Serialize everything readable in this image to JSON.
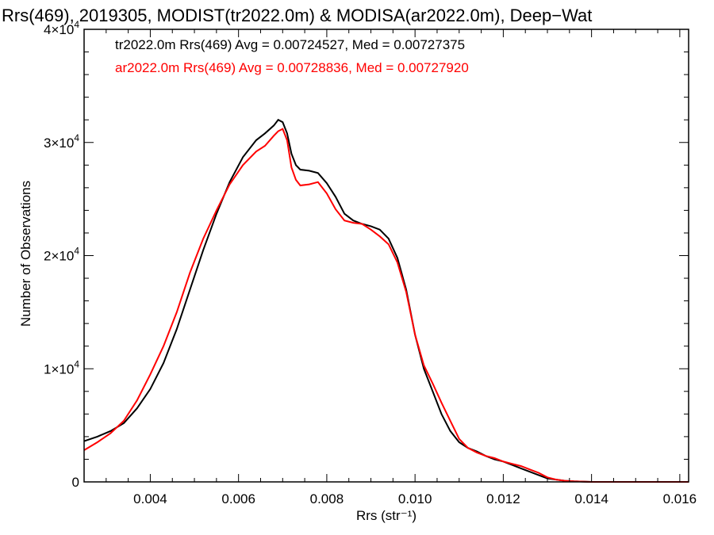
{
  "chart_data": {
    "type": "line",
    "title": "Rrs(469), 2019305, MODIST(tr2022.0m) & MODISA(ar2022.0m), Deep−Wat",
    "xlabel": "Rrs (str⁻¹)",
    "ylabel": "Number of Observations",
    "xlim": [
      0.0025,
      0.0162
    ],
    "ylim": [
      0,
      40000
    ],
    "xticks": [
      0.004,
      0.006,
      0.008,
      0.01,
      0.012,
      0.014,
      0.016
    ],
    "xtick_labels": [
      "0.004",
      "0.006",
      "0.008",
      "0.010",
      "0.012",
      "0.014",
      "0.016"
    ],
    "yticks": [
      0,
      10000,
      20000,
      30000,
      40000
    ],
    "ytick_labels": [
      "0",
      "1×10⁴",
      "2×10⁴",
      "3×10⁴",
      "4×10⁴"
    ],
    "grid": false,
    "legend_position": "top-left",
    "series": [
      {
        "name": "tr2022.0m Rrs(469) Avg = 0.00724527, Med = 0.00727375",
        "color": "#000000",
        "x": [
          0.0025,
          0.0028,
          0.0031,
          0.0034,
          0.0037,
          0.004,
          0.0043,
          0.0046,
          0.0049,
          0.0052,
          0.0055,
          0.0058,
          0.0061,
          0.0064,
          0.0066,
          0.0068,
          0.0069,
          0.007,
          0.0071,
          0.0072,
          0.0073,
          0.0074,
          0.0076,
          0.0078,
          0.008,
          0.0082,
          0.0084,
          0.0086,
          0.0088,
          0.009,
          0.0092,
          0.0094,
          0.0096,
          0.0098,
          0.01,
          0.0102,
          0.0104,
          0.0106,
          0.0108,
          0.011,
          0.0112,
          0.0114,
          0.0116,
          0.0118,
          0.012,
          0.0122,
          0.0124,
          0.0126,
          0.0128,
          0.013,
          0.0132,
          0.0134,
          0.0136,
          0.014,
          0.015,
          0.0162
        ],
        "y": [
          3600,
          4000,
          4500,
          5200,
          6500,
          8200,
          10500,
          13500,
          17000,
          20500,
          23700,
          26500,
          28700,
          30200,
          30800,
          31500,
          32000,
          31800,
          30800,
          29000,
          28000,
          27600,
          27500,
          27300,
          26400,
          25200,
          23700,
          23100,
          22800,
          22600,
          22300,
          21500,
          19800,
          17000,
          13000,
          10000,
          8000,
          6000,
          4500,
          3500,
          3000,
          2700,
          2300,
          2000,
          1800,
          1500,
          1200,
          900,
          600,
          300,
          200,
          100,
          50,
          0,
          0,
          0
        ]
      },
      {
        "name": "ar2022.0m Rrs(469) Avg = 0.00728836, Med = 0.00727920",
        "color": "#ff0000",
        "x": [
          0.0025,
          0.0028,
          0.0031,
          0.0034,
          0.0037,
          0.004,
          0.0043,
          0.0046,
          0.0049,
          0.0052,
          0.0055,
          0.0058,
          0.0061,
          0.0064,
          0.0066,
          0.0068,
          0.0069,
          0.007,
          0.0071,
          0.0072,
          0.0073,
          0.0074,
          0.0076,
          0.0078,
          0.008,
          0.0082,
          0.0084,
          0.0086,
          0.0088,
          0.009,
          0.0092,
          0.0094,
          0.0096,
          0.0098,
          0.01,
          0.0102,
          0.0104,
          0.0106,
          0.0108,
          0.011,
          0.0112,
          0.0114,
          0.0116,
          0.0118,
          0.012,
          0.0122,
          0.0124,
          0.0126,
          0.0128,
          0.013,
          0.0132,
          0.0134,
          0.0136,
          0.014,
          0.015,
          0.0162
        ],
        "y": [
          2800,
          3500,
          4300,
          5400,
          7200,
          9500,
          12000,
          15000,
          18500,
          21500,
          24000,
          26300,
          28000,
          29200,
          29700,
          30600,
          31000,
          31200,
          30200,
          27800,
          26700,
          26200,
          26300,
          26500,
          25500,
          24100,
          23100,
          22900,
          22800,
          22300,
          21700,
          21000,
          19400,
          16800,
          13000,
          10300,
          8700,
          7000,
          5400,
          3800,
          3000,
          2600,
          2300,
          2100,
          1800,
          1600,
          1400,
          1100,
          800,
          400,
          200,
          100,
          50,
          0,
          0,
          0
        ]
      }
    ]
  }
}
